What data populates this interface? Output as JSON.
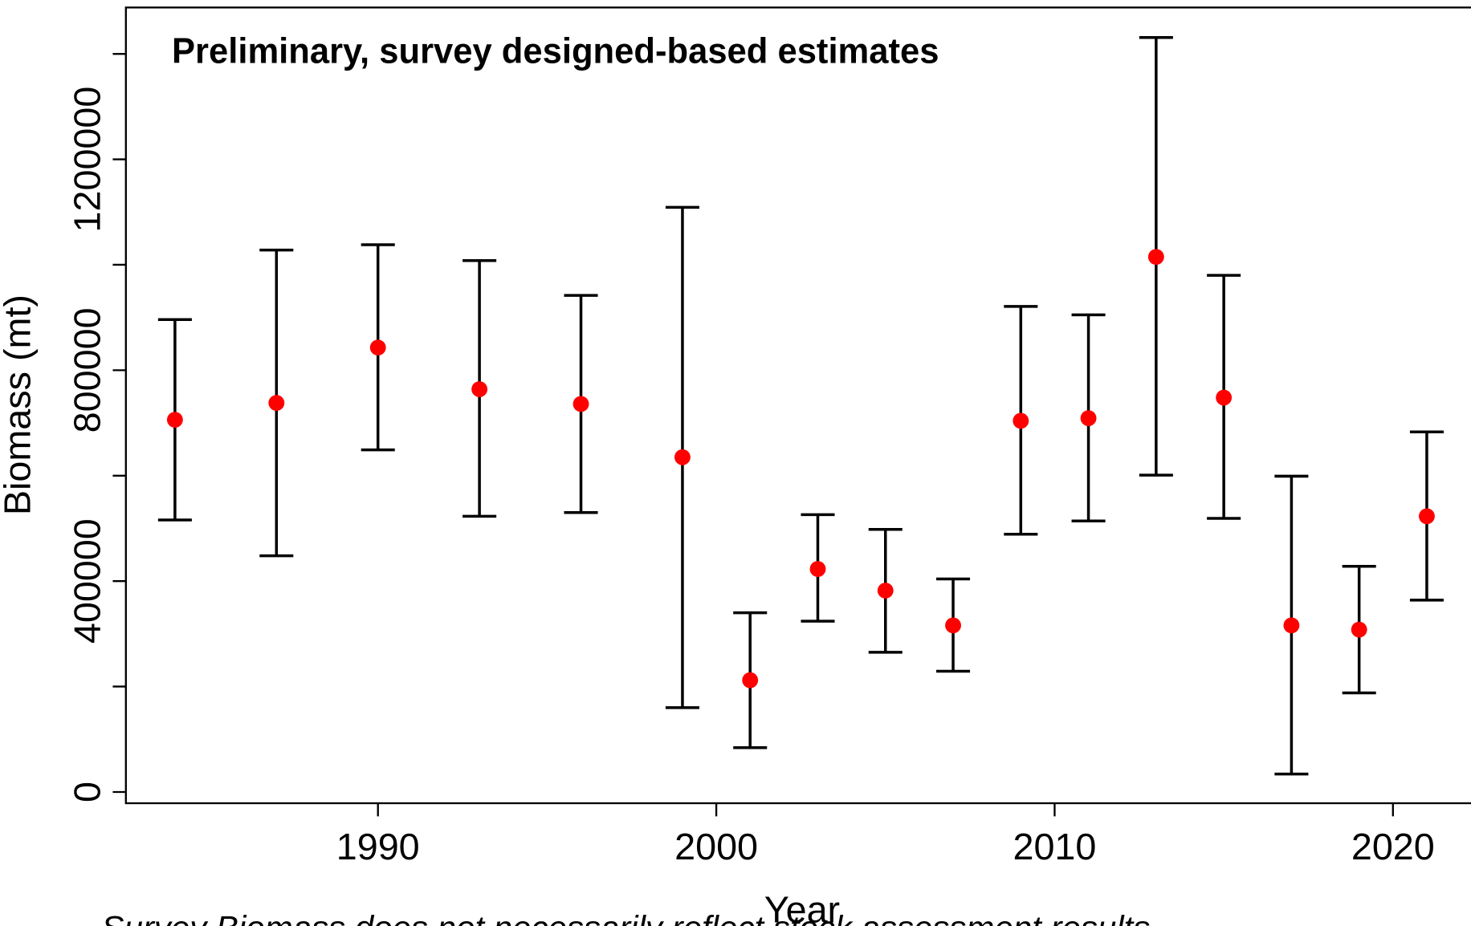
{
  "chart_data": {
    "type": "errorbar",
    "title": "Preliminary, survey designed-based estimates",
    "x_label": "Year",
    "y_label": "Biomass (mt)",
    "footnote": "Survey Biomass does not necessarily reflect stock assessment results",
    "x": [
      1984,
      1987,
      1990,
      1993,
      1996,
      1999,
      2001,
      2003,
      2005,
      2007,
      2009,
      2011,
      2013,
      2015,
      2017,
      2019,
      2021
    ],
    "series": [
      {
        "color": "#ff0000",
        "bar_color": "#000000",
        "values": [
          706000,
          738000,
          843000,
          764000,
          736000,
          635000,
          212000,
          423000,
          382000,
          316000,
          704000,
          709000,
          1015000,
          748000,
          316000,
          308000,
          523000
        ],
        "upper": [
          896000,
          1028000,
          1038000,
          1008000,
          942000,
          1109000,
          340000,
          526000,
          498000,
          404000,
          921000,
          905000,
          1431000,
          980000,
          599000,
          428000,
          683000
        ],
        "lower": [
          516000,
          448000,
          649000,
          523000,
          530000,
          160000,
          84000,
          324000,
          265000,
          229000,
          489000,
          514000,
          601000,
          519000,
          34000,
          188000,
          364000
        ]
      }
    ],
    "xlim": [
      1982.55,
      2022.3
    ],
    "ylim": [
      -21300,
      1488000
    ],
    "xticks": [
      1990,
      2000,
      2010,
      2020
    ],
    "yticks": [
      0,
      {
        "value": 200000,
        "label": null
      },
      400000,
      {
        "value": 600000,
        "label": null
      },
      800000,
      {
        "value": 1000000,
        "label": null
      },
      1200000,
      {
        "value": 1400000,
        "label": null
      }
    ]
  }
}
